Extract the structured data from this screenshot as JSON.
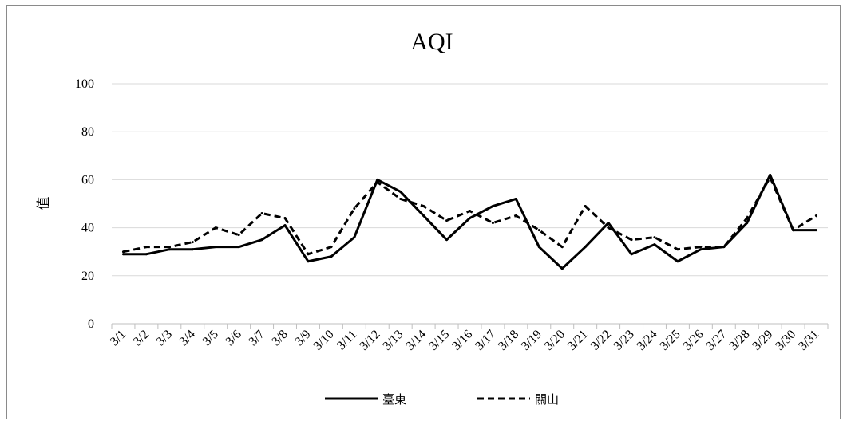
{
  "chart_data": {
    "type": "line",
    "title": "AQI",
    "xlabel": "",
    "ylabel": "值",
    "ylim": [
      0,
      100
    ],
    "yticks": [
      0,
      20,
      40,
      60,
      80,
      100
    ],
    "grid": true,
    "legend": "bottom",
    "categories": [
      "3/1",
      "3/2",
      "3/3",
      "3/4",
      "3/5",
      "3/6",
      "3/7",
      "3/8",
      "3/9",
      "3/10",
      "3/11",
      "3/12",
      "3/13",
      "3/14",
      "3/15",
      "3/16",
      "3/17",
      "3/18",
      "3/19",
      "3/20",
      "3/21",
      "3/22",
      "3/23",
      "3/24",
      "3/25",
      "3/26",
      "3/27",
      "3/28",
      "3/29",
      "3/30",
      "3/31"
    ],
    "series": [
      {
        "name": "臺東",
        "style": "solid",
        "color": "#000000",
        "values": [
          29,
          29,
          31,
          31,
          32,
          32,
          35,
          41,
          26,
          28,
          36,
          60,
          55,
          45,
          35,
          44,
          49,
          52,
          32,
          23,
          32,
          42,
          29,
          33,
          26,
          31,
          32,
          42,
          62,
          39,
          39
        ]
      },
      {
        "name": "關山",
        "style": "dashed",
        "color": "#000000",
        "values": [
          30,
          32,
          32,
          34,
          40,
          37,
          46,
          44,
          29,
          32,
          48,
          59,
          52,
          49,
          43,
          47,
          42,
          45,
          39,
          32,
          49,
          40,
          35,
          36,
          31,
          32,
          32,
          44,
          61,
          39,
          45
        ]
      }
    ]
  }
}
